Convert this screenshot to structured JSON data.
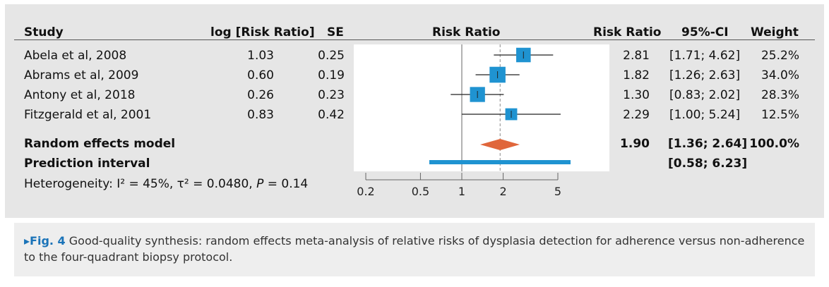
{
  "headers": {
    "study": "Study",
    "log_rr": "log [Risk Ratio]",
    "se": "SE",
    "plot": "Risk Ratio",
    "rr": "Risk Ratio",
    "ci": "95%-CI",
    "weight": "Weight"
  },
  "studies": [
    {
      "name": "Abela et al, 2008",
      "log_rr": "1.03",
      "se": "0.25",
      "rr": "2.81",
      "ci": "[1.71; 4.62]",
      "weight": "25.2%"
    },
    {
      "name": "Abrams et al, 2009",
      "log_rr": "0.60",
      "se": "0.19",
      "rr": "1.82",
      "ci": "[1.26; 2.63]",
      "weight": "34.0%"
    },
    {
      "name": "Antony et al, 2018",
      "log_rr": "0.26",
      "se": "0.23",
      "rr": "1.30",
      "ci": "[0.83; 2.02]",
      "weight": "28.3%"
    },
    {
      "name": "Fitzgerald et al, 2001",
      "log_rr": "0.83",
      "se": "0.42",
      "rr": "2.29",
      "ci": "[1.00; 5.24]",
      "weight": "12.5%"
    }
  ],
  "summary": {
    "random_label": "Random effects model",
    "random_rr": "1.90",
    "random_ci": "[1.36; 2.64]",
    "random_weight": "100.0%",
    "prediction_label": "Prediction interval",
    "prediction_ci": "[0.58; 6.23]",
    "heterogeneity_prefix": "Heterogeneity: I² = 45%, τ² = 0.0480, ",
    "heterogeneity_p_symbol": "P",
    "heterogeneity_p_value": " = 0.14"
  },
  "caption": {
    "label": "▸Fig. 4",
    "text": " Good-quality synthesis: random effects meta-analysis of relative risks of dysplasia detection for adherence versus non-adherence to the four-quadrant biopsy protocol."
  },
  "colors": {
    "square": "#1f93d1",
    "diamond": "#e0663b",
    "prediction": "#1f93d1",
    "line": "#222222",
    "axis": "#666666",
    "dashed": "#888888"
  },
  "chart_data": {
    "type": "forest",
    "scale": "log",
    "xlim": [
      0.2,
      5
    ],
    "ticks": [
      0.2,
      0.5,
      1,
      2,
      5
    ],
    "tick_labels": [
      "0.2",
      "0.5",
      "1",
      "2",
      "5"
    ],
    "null_line": 1,
    "pooled_line": 1.9,
    "studies": [
      {
        "name": "Abela et al, 2008",
        "rr": 2.81,
        "lo": 1.71,
        "hi": 4.62,
        "weight": 25.2
      },
      {
        "name": "Abrams et al, 2009",
        "rr": 1.82,
        "lo": 1.26,
        "hi": 2.63,
        "weight": 34.0
      },
      {
        "name": "Antony et al, 2018",
        "rr": 1.3,
        "lo": 0.83,
        "hi": 2.02,
        "weight": 28.3
      },
      {
        "name": "Fitzgerald et al, 2001",
        "rr": 2.29,
        "lo": 1.0,
        "hi": 5.24,
        "weight": 12.5
      }
    ],
    "pooled": {
      "rr": 1.9,
      "lo": 1.36,
      "hi": 2.64
    },
    "prediction_interval": {
      "lo": 0.58,
      "hi": 6.23
    }
  }
}
